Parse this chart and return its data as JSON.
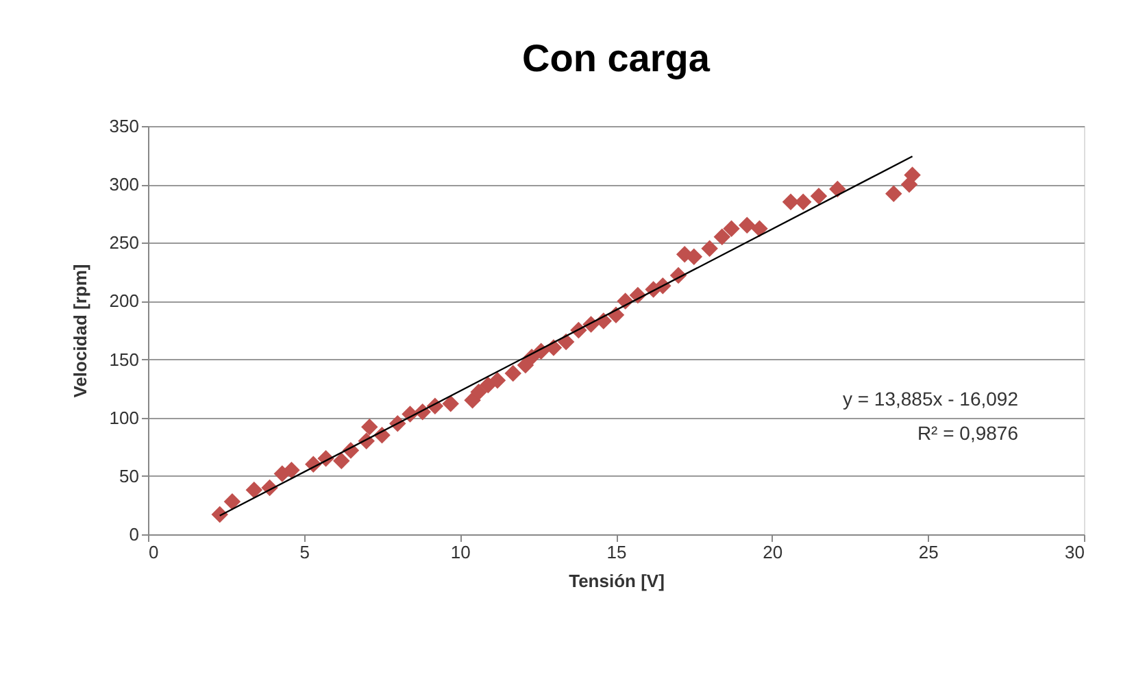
{
  "chart_data": {
    "type": "scatter",
    "title": "Con carga",
    "xlabel": "Tensión  [V]",
    "ylabel": "Velocidad  [rpm]",
    "xlim": [
      0,
      30
    ],
    "xticks": [
      0,
      5,
      10,
      15,
      20,
      25,
      30
    ],
    "ylim": [
      0,
      350
    ],
    "yticks": [
      0,
      50,
      100,
      150,
      200,
      250,
      300,
      350
    ],
    "grid": "y",
    "series": [
      {
        "color": "#c0504d",
        "marker": "diamond",
        "x": [
          2.3,
          2.7,
          3.4,
          3.9,
          4.3,
          4.6,
          5.3,
          5.7,
          6.2,
          6.5,
          7.0,
          7.1,
          7.5,
          8.0,
          8.4,
          8.8,
          9.2,
          9.7,
          10.4,
          10.6,
          10.9,
          11.2,
          11.7,
          12.1,
          12.3,
          12.6,
          13.0,
          13.4,
          13.8,
          14.2,
          14.6,
          15.0,
          15.3,
          15.7,
          16.2,
          16.5,
          17.0,
          17.2,
          17.5,
          18.0,
          18.4,
          18.7,
          19.2,
          19.6,
          20.6,
          21.0,
          21.5,
          22.1,
          23.9,
          24.4,
          24.5
        ],
        "values": [
          17,
          28,
          38,
          40,
          52,
          55,
          60,
          65,
          63,
          72,
          80,
          92,
          85,
          95,
          103,
          105,
          110,
          112,
          115,
          122,
          128,
          132,
          138,
          145,
          152,
          157,
          160,
          165,
          175,
          180,
          183,
          188,
          200,
          205,
          210,
          213,
          222,
          240,
          238,
          245,
          255,
          262,
          265,
          262,
          285,
          285,
          290,
          296,
          292,
          300,
          308
        ]
      },
      {
        "type": "line",
        "color": "#000000",
        "x": [
          2.3,
          24.5
        ],
        "values": [
          16,
          324
        ]
      }
    ],
    "annotations": [
      "y = 13,885x - 16,092",
      "R² = 0,9876"
    ]
  }
}
